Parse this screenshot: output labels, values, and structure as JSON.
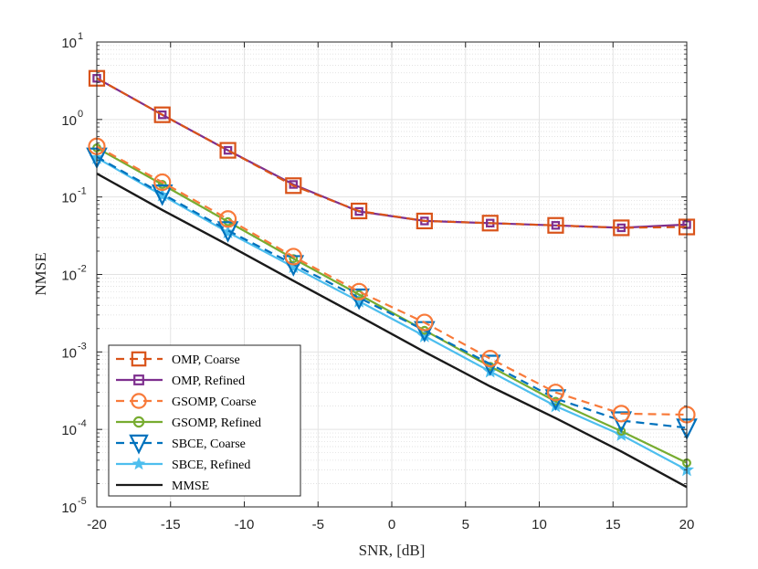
{
  "chart_data": {
    "type": "line",
    "title": "",
    "xlabel": "SNR, [dB]",
    "ylabel": "NMSE",
    "yscale": "log",
    "xlim": [
      -20,
      20
    ],
    "ylim": [
      1e-05,
      10
    ],
    "xticks": [
      -20,
      -15,
      -10,
      -5,
      0,
      5,
      10,
      15,
      20
    ],
    "xtick_labels": [
      "-20",
      "-15",
      "-10",
      "-5",
      "0",
      "5",
      "10",
      "15",
      "20"
    ],
    "yticks": [
      {
        "value": 1e-05,
        "base": "10",
        "exp": "-5"
      },
      {
        "value": 0.0001,
        "base": "10",
        "exp": "-4"
      },
      {
        "value": 0.001,
        "base": "10",
        "exp": "-3"
      },
      {
        "value": 0.01,
        "base": "10",
        "exp": "-2"
      },
      {
        "value": 0.1,
        "base": "10",
        "exp": "-1"
      },
      {
        "value": 1,
        "base": "10",
        "exp": "0"
      },
      {
        "value": 10,
        "base": "10",
        "exp": "1"
      }
    ],
    "grid": true,
    "legend_position": "bottom-left",
    "x": [
      -20,
      -15.56,
      -11.11,
      -6.67,
      -2.22,
      2.22,
      6.67,
      11.11,
      15.56,
      20
    ],
    "series": [
      {
        "name": "OMP, Coarse",
        "color": "#D95319",
        "dash": "dashed",
        "marker": "square",
        "values": [
          3.4,
          1.15,
          0.4,
          0.14,
          0.066,
          0.049,
          0.046,
          0.043,
          0.04,
          0.041
        ]
      },
      {
        "name": "OMP, Refined",
        "color": "#7E2F8E",
        "dash": "solid",
        "marker": "square",
        "values": [
          3.4,
          1.15,
          0.4,
          0.145,
          0.065,
          0.049,
          0.046,
          0.043,
          0.04,
          0.044
        ]
      },
      {
        "name": "GSOMP, Coarse",
        "color": "#F87A3A",
        "dash": "dashed",
        "marker": "circle",
        "values": [
          0.45,
          0.155,
          0.052,
          0.017,
          0.006,
          0.0024,
          0.00082,
          0.0003,
          0.00016,
          0.000155
        ]
      },
      {
        "name": "GSOMP, Refined",
        "color": "#77AC30",
        "dash": "solid",
        "marker": "circle",
        "values": [
          0.43,
          0.145,
          0.048,
          0.016,
          0.0055,
          0.0019,
          0.00065,
          0.00023,
          9.5e-05,
          3.7e-05
        ]
      },
      {
        "name": "SBCE, Coarse",
        "color": "#0072BD",
        "dash": "dashed",
        "marker": "triangle-down",
        "values": [
          0.33,
          0.11,
          0.037,
          0.0135,
          0.005,
          0.0019,
          0.0007,
          0.00025,
          0.00013,
          0.000105
        ]
      },
      {
        "name": "SBCE, Refined",
        "color": "#4DBEEE",
        "dash": "solid",
        "marker": "star",
        "values": [
          0.32,
          0.105,
          0.035,
          0.0125,
          0.0045,
          0.0016,
          0.00056,
          0.0002,
          8.5e-05,
          3e-05
        ]
      },
      {
        "name": "MMSE",
        "color": "#1A1A1A",
        "dash": "solid",
        "marker": "none",
        "values": [
          0.2,
          0.068,
          0.024,
          0.0083,
          0.0029,
          0.001,
          0.00036,
          0.00014,
          5.2e-05,
          1.8e-05
        ]
      }
    ]
  }
}
